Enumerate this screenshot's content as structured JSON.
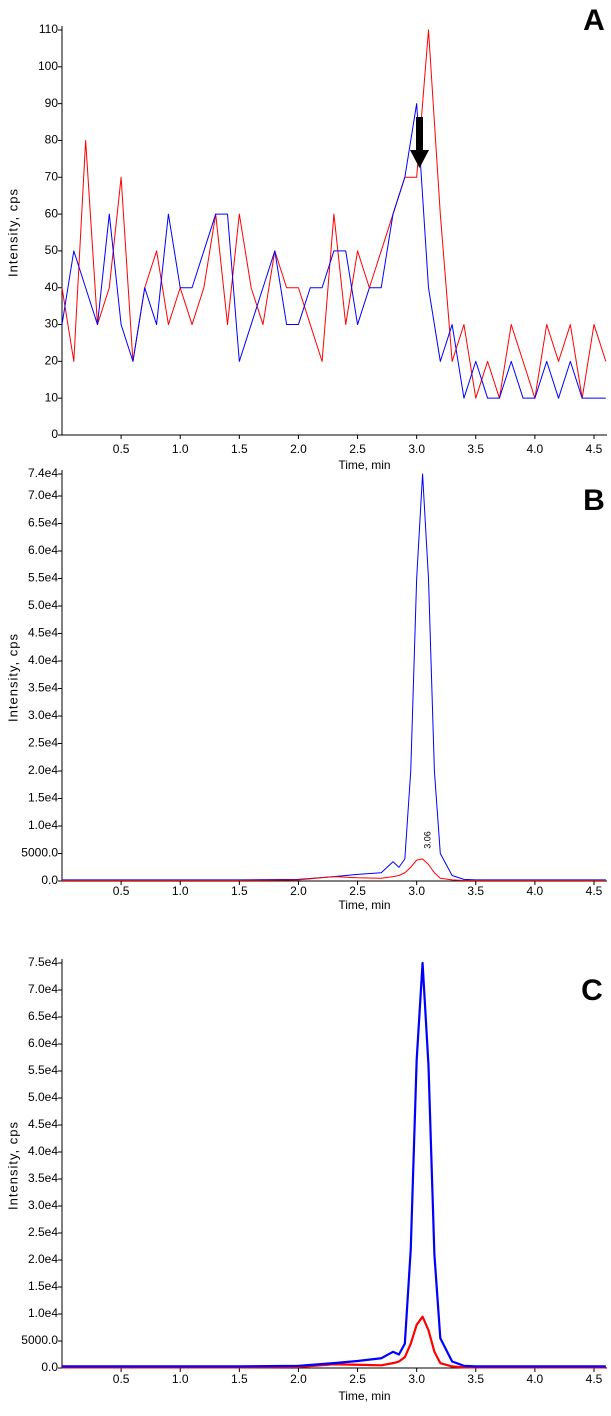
{
  "chart_data": [
    {
      "type": "line",
      "panel_label": "A",
      "xlabel": "Time, min",
      "ylabel": "Intensity, cps",
      "line_width": 1,
      "x": [
        0,
        0.1,
        0.2,
        0.3,
        0.4,
        0.5,
        0.6,
        0.7,
        0.8,
        0.9,
        1.0,
        1.1,
        1.2,
        1.3,
        1.4,
        1.5,
        1.6,
        1.7,
        1.8,
        1.9,
        2.0,
        2.1,
        2.2,
        2.3,
        2.4,
        2.5,
        2.6,
        2.7,
        2.8,
        2.9,
        3.0,
        3.1,
        3.2,
        3.3,
        3.4,
        3.5,
        3.6,
        3.7,
        3.8,
        3.9,
        4.0,
        4.1,
        4.2,
        4.3,
        4.4,
        4.5,
        4.6
      ],
      "series": [
        {
          "color": "#ff0000",
          "values": [
            40,
            20,
            80,
            30,
            40,
            70,
            20,
            40,
            50,
            30,
            40,
            30,
            40,
            60,
            30,
            60,
            40,
            30,
            50,
            40,
            40,
            30,
            20,
            60,
            30,
            50,
            40,
            50,
            60,
            70,
            70,
            110,
            60,
            20,
            30,
            10,
            20,
            10,
            30,
            20,
            10,
            30,
            20,
            30,
            10,
            30,
            20
          ]
        },
        {
          "color": "#0000ff",
          "values": [
            30,
            50,
            40,
            30,
            60,
            30,
            20,
            40,
            30,
            60,
            40,
            40,
            50,
            60,
            60,
            20,
            30,
            40,
            50,
            30,
            30,
            40,
            40,
            50,
            50,
            30,
            40,
            40,
            60,
            70,
            90,
            40,
            20,
            30,
            10,
            20,
            10,
            10,
            20,
            10,
            10,
            20,
            10,
            20,
            10,
            10,
            10
          ]
        }
      ],
      "xlim": [
        0,
        4.61
      ],
      "ylim": [
        0,
        110
      ],
      "xticks": [
        0.5,
        {
          "value": 1,
          "label": "1.0"
        },
        1.5,
        {
          "value": 2,
          "label": "2.0"
        },
        2.5,
        {
          "value": 3,
          "label": "3.0"
        },
        3.5,
        {
          "value": 4,
          "label": "4.0"
        },
        4.5
      ],
      "yticks": [
        0,
        10,
        20,
        30,
        40,
        50,
        60,
        70,
        80,
        90,
        100,
        110
      ]
    },
    {
      "type": "line",
      "panel_label": "B",
      "xlabel": "Time, min",
      "ylabel": "Intensity, cps",
      "line_width": 1,
      "annotation": "3.06",
      "x": [
        0,
        0.5,
        1,
        1.5,
        2,
        2.3,
        2.5,
        2.7,
        2.8,
        2.85,
        2.9,
        2.95,
        3.0,
        3.05,
        3.1,
        3.15,
        3.2,
        3.3,
        3.4,
        3.5,
        4.0,
        4.6
      ],
      "series": [
        {
          "color": "#0000ff",
          "values": [
            200,
            200,
            200,
            200,
            300,
            800,
            1200,
            1500,
            3500,
            2500,
            4000,
            20000,
            55000,
            74000,
            55000,
            20000,
            5000,
            1000,
            300,
            200,
            200,
            200
          ]
        },
        {
          "color": "#ff0000",
          "values": [
            100,
            100,
            100,
            100,
            200,
            800,
            600,
            500,
            800,
            1000,
            1500,
            2500,
            3800,
            4000,
            3000,
            1500,
            500,
            200,
            100,
            100,
            100,
            100
          ]
        }
      ],
      "xlim": [
        0,
        4.61
      ],
      "ylim": [
        0,
        74000
      ],
      "xticks": [
        0.5,
        {
          "value": 1,
          "label": "1.0"
        },
        1.5,
        {
          "value": 2,
          "label": "2.0"
        },
        2.5,
        {
          "value": 3,
          "label": "3.0"
        },
        3.5,
        {
          "value": 4,
          "label": "4.0"
        },
        4.5
      ],
      "yticks": [
        {
          "value": 0,
          "label": "0.0"
        },
        {
          "value": 5000,
          "label": "5000.0"
        },
        {
          "value": 10000,
          "label": "1.0e4"
        },
        {
          "value": 15000,
          "label": "1.5e4"
        },
        {
          "value": 20000,
          "label": "2.0e4"
        },
        {
          "value": 25000,
          "label": "2.5e4"
        },
        {
          "value": 30000,
          "label": "3.0e4"
        },
        {
          "value": 35000,
          "label": "3.5e4"
        },
        {
          "value": 40000,
          "label": "4.0e4"
        },
        {
          "value": 45000,
          "label": "4.5e4"
        },
        {
          "value": 50000,
          "label": "5.0e4"
        },
        {
          "value": 55000,
          "label": "5.5e4"
        },
        {
          "value": 60000,
          "label": "6.0e4"
        },
        {
          "value": 65000,
          "label": "6.5e4"
        },
        {
          "value": 70000,
          "label": "7.0e4"
        },
        {
          "value": 74000,
          "label": "7.4e4"
        }
      ]
    },
    {
      "type": "line",
      "panel_label": "C",
      "xlabel": "Time, min",
      "ylabel": "Intensity, cps",
      "line_width": 2.2,
      "x": [
        0,
        0.5,
        1,
        1.5,
        2,
        2.3,
        2.5,
        2.7,
        2.8,
        2.85,
        2.9,
        2.95,
        3.0,
        3.05,
        3.1,
        3.15,
        3.2,
        3.3,
        3.4,
        3.5,
        4.0,
        4.6
      ],
      "series": [
        {
          "color": "#ff0000",
          "values": [
            100,
            100,
            100,
            100,
            200,
            700,
            600,
            500,
            900,
            1200,
            2000,
            4500,
            8000,
            9500,
            7000,
            3000,
            900,
            300,
            100,
            100,
            100,
            100
          ]
        },
        {
          "color": "#0000ff",
          "values": [
            300,
            300,
            300,
            300,
            400,
            900,
            1300,
            1800,
            3000,
            2500,
            4500,
            22000,
            57000,
            75000,
            56000,
            21000,
            5500,
            1200,
            400,
            300,
            300,
            300
          ]
        }
      ],
      "xlim": [
        0,
        4.61
      ],
      "ylim": [
        0,
        75000
      ],
      "xticks": [
        0.5,
        {
          "value": 1,
          "label": "1.0"
        },
        1.5,
        {
          "value": 2,
          "label": "2.0"
        },
        2.5,
        {
          "value": 3,
          "label": "3.0"
        },
        3.5,
        {
          "value": 4,
          "label": "4.0"
        },
        4.5
      ],
      "yticks": [
        {
          "value": 0,
          "label": "0.0"
        },
        {
          "value": 5000,
          "label": "5000.0"
        },
        {
          "value": 10000,
          "label": "1.0e4"
        },
        {
          "value": 15000,
          "label": "1.5e4"
        },
        {
          "value": 20000,
          "label": "2.0e4"
        },
        {
          "value": 25000,
          "label": "2.5e4"
        },
        {
          "value": 30000,
          "label": "3.0e4"
        },
        {
          "value": 35000,
          "label": "3.5e4"
        },
        {
          "value": 40000,
          "label": "4.0e4"
        },
        {
          "value": 45000,
          "label": "4.5e4"
        },
        {
          "value": 50000,
          "label": "5.0e4"
        },
        {
          "value": 55000,
          "label": "5.5e4"
        },
        {
          "value": 60000,
          "label": "6.0e4"
        },
        {
          "value": 65000,
          "label": "6.5e4"
        },
        {
          "value": 70000,
          "label": "7.0e4"
        },
        {
          "value": 75000,
          "label": "7.5e4"
        }
      ]
    }
  ]
}
